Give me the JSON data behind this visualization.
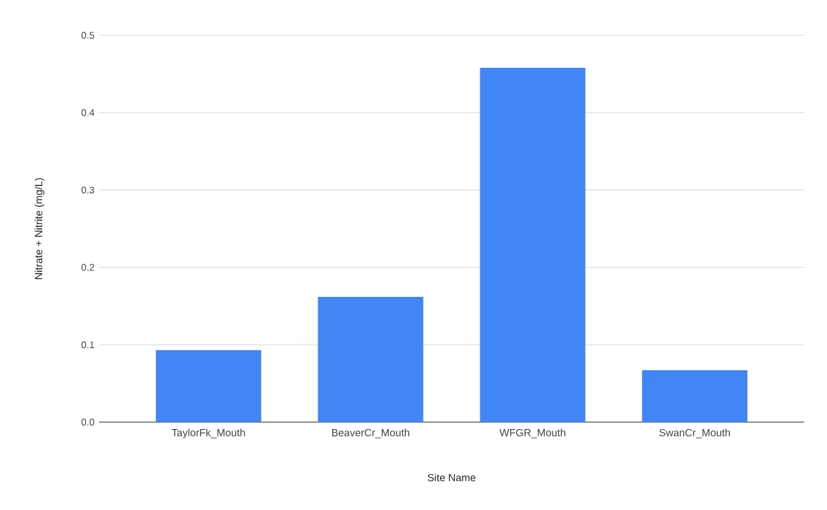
{
  "chart_data": {
    "type": "bar",
    "xlabel": "Site Name",
    "ylabel": "Nitrate + Nitrite (mg/L)",
    "categories": [
      "TaylorFk_Mouth",
      "BeaverCr_Mouth",
      "WFGR_Mouth",
      "SwanCr_Mouth"
    ],
    "values": [
      0.093,
      0.162,
      0.458,
      0.067
    ],
    "color": "#4285f4",
    "ylim": [
      0,
      0.5
    ],
    "yticks": [
      {
        "value": 0,
        "label": "0.0"
      },
      0.1,
      0.2,
      0.3,
      0.4,
      0.5
    ],
    "grid": "y"
  }
}
